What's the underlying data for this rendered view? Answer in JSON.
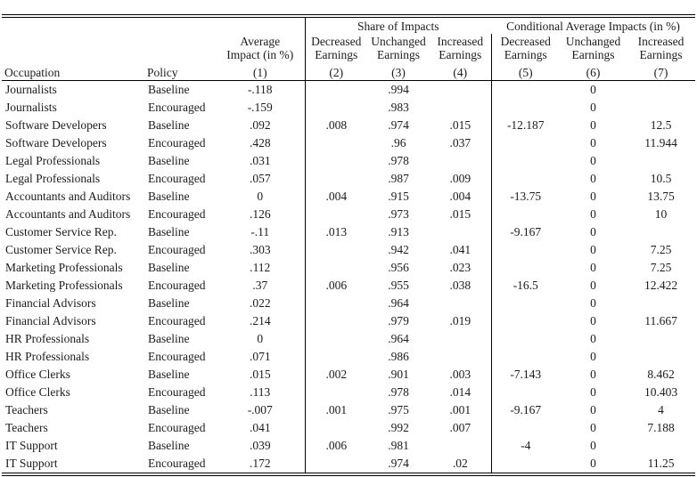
{
  "table": {
    "group_headers": {
      "share": "Share of Impacts",
      "conditional": "Conditional Average Impacts (in %)"
    },
    "column_headers": {
      "occupation": "Occupation",
      "policy": "Policy",
      "avg_impact": "Average\nImpact (in %)",
      "decreased": "Decreased\nEarnings",
      "unchanged": "Unchanged\nEarnings",
      "increased": "Increased\nEarnings",
      "numbers": [
        "(1)",
        "(2)",
        "(3)",
        "(4)",
        "(5)",
        "(6)",
        "(7)"
      ]
    },
    "rows": [
      {
        "occupation": "Journalists",
        "policy": "Baseline",
        "values": [
          "-.118",
          "",
          ".994",
          "",
          "",
          "0",
          ""
        ]
      },
      {
        "occupation": "Journalists",
        "policy": "Encouraged",
        "values": [
          "-.159",
          "",
          ".983",
          "",
          "",
          "0",
          ""
        ]
      },
      {
        "occupation": "Software Developers",
        "policy": "Baseline",
        "values": [
          ".092",
          ".008",
          ".974",
          ".015",
          "-12.187",
          "0",
          "12.5"
        ]
      },
      {
        "occupation": "Software Developers",
        "policy": "Encouraged",
        "values": [
          ".428",
          "",
          ".96",
          ".037",
          "",
          "0",
          "11.944"
        ]
      },
      {
        "occupation": "Legal Professionals",
        "policy": "Baseline",
        "values": [
          ".031",
          "",
          ".978",
          "",
          "",
          "0",
          ""
        ]
      },
      {
        "occupation": "Legal Professionals",
        "policy": "Encouraged",
        "values": [
          ".057",
          "",
          ".987",
          ".009",
          "",
          "0",
          "10.5"
        ]
      },
      {
        "occupation": "Accountants and Auditors",
        "policy": "Baseline",
        "values": [
          "0",
          ".004",
          ".915",
          ".004",
          "-13.75",
          "0",
          "13.75"
        ]
      },
      {
        "occupation": "Accountants and Auditors",
        "policy": "Encouraged",
        "values": [
          ".126",
          "",
          ".973",
          ".015",
          "",
          "0",
          "10"
        ]
      },
      {
        "occupation": "Customer Service Rep.",
        "policy": "Baseline",
        "values": [
          "-.11",
          ".013",
          ".913",
          "",
          "-9.167",
          "0",
          ""
        ]
      },
      {
        "occupation": "Customer Service Rep.",
        "policy": "Encouraged",
        "values": [
          ".303",
          "",
          ".942",
          ".041",
          "",
          "0",
          "7.25"
        ]
      },
      {
        "occupation": "Marketing Professionals",
        "policy": "Baseline",
        "values": [
          ".112",
          "",
          ".956",
          ".023",
          "",
          "0",
          "7.25"
        ]
      },
      {
        "occupation": "Marketing Professionals",
        "policy": "Encouraged",
        "values": [
          ".37",
          ".006",
          ".955",
          ".038",
          "-16.5",
          "0",
          "12.422"
        ]
      },
      {
        "occupation": "Financial Advisors",
        "policy": "Baseline",
        "values": [
          ".022",
          "",
          ".964",
          "",
          "",
          "0",
          ""
        ]
      },
      {
        "occupation": "Financial Advisors",
        "policy": "Encouraged",
        "values": [
          ".214",
          "",
          ".979",
          ".019",
          "",
          "0",
          "11.667"
        ]
      },
      {
        "occupation": "HR Professionals",
        "policy": "Baseline",
        "values": [
          "0",
          "",
          ".964",
          "",
          "",
          "0",
          ""
        ]
      },
      {
        "occupation": "HR Professionals",
        "policy": "Encouraged",
        "values": [
          ".071",
          "",
          ".986",
          "",
          "",
          "0",
          ""
        ]
      },
      {
        "occupation": "Office Clerks",
        "policy": "Baseline",
        "values": [
          ".015",
          ".002",
          ".901",
          ".003",
          "-7.143",
          "0",
          "8.462"
        ]
      },
      {
        "occupation": "Office Clerks",
        "policy": "Encouraged",
        "values": [
          ".113",
          "",
          ".978",
          ".014",
          "",
          "0",
          "10.403"
        ]
      },
      {
        "occupation": "Teachers",
        "policy": "Baseline",
        "values": [
          "-.007",
          ".001",
          ".975",
          ".001",
          "-9.167",
          "0",
          "4"
        ]
      },
      {
        "occupation": "Teachers",
        "policy": "Encouraged",
        "values": [
          ".041",
          "",
          ".992",
          ".007",
          "",
          "0",
          "7.188"
        ]
      },
      {
        "occupation": "IT Support",
        "policy": "Baseline",
        "values": [
          ".039",
          ".006",
          ".981",
          "",
          "-4",
          "0",
          ""
        ]
      },
      {
        "occupation": "IT Support",
        "policy": "Encouraged",
        "values": [
          ".172",
          "",
          ".974",
          ".02",
          "",
          "0",
          "11.25"
        ]
      }
    ]
  },
  "colors": {
    "rule": "#000000",
    "text": "#1c1c1c",
    "background": "#ffffff"
  }
}
